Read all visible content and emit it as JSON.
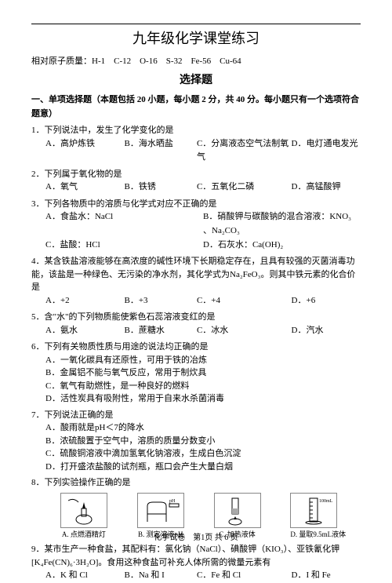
{
  "title": "九年级化学课堂练习",
  "atomic_mass_label": "相对原子质量：",
  "atomic_mass_values": "H-1　C-12　O-16　S-32　Fe-56　Cu-64",
  "section_header": "选择题",
  "instruction": "一、单项选择题（本题包括 20 小题，每小题 2 分，共 40 分。每小题只有一个选项符合题意）",
  "questions": [
    {
      "num": "1．",
      "text": "下列说法中，发生了化学变化的是",
      "opts": [
        {
          "k": "A．",
          "v": "高炉炼铁"
        },
        {
          "k": "B．",
          "v": "海水晒盐"
        },
        {
          "k": "C．",
          "v": "分离液态空气法制氧气"
        },
        {
          "k": "D．",
          "v": "电灯通电发光"
        }
      ],
      "layout": "four"
    },
    {
      "num": "2．",
      "text": "下列属于氧化物的是",
      "opts": [
        {
          "k": "A．",
          "v": "氧气"
        },
        {
          "k": "B．",
          "v": "铁锈"
        },
        {
          "k": "C．",
          "v": "五氧化二磷"
        },
        {
          "k": "D．",
          "v": "高锰酸钾"
        }
      ],
      "layout": "four"
    },
    {
      "num": "3．",
      "text": "下列各物质中的溶质与化学式对应不正确的是",
      "opts": [
        {
          "k": "A．",
          "v": "食盐水：NaCl"
        },
        {
          "k": "B．",
          "v": "硝酸钾与碳酸钠的混合溶液：KNO₃ 、Na₂CO₃"
        },
        {
          "k": "C．",
          "v": "盐酸：HCl"
        },
        {
          "k": "D．",
          "v": "石灰水：Ca(OH)₂"
        }
      ],
      "layout": "two"
    },
    {
      "num": "4．",
      "text": "某含铁盐溶液能够在高浓度的碱性环境下长期稳定存在，且具有较强的灭菌消毒功能，该盐是一种绿色、无污染的净水剂，其化学式为Na₂FeO₃。则其中铁元素的化合价是",
      "opts": [
        {
          "k": "A．",
          "v": "+2"
        },
        {
          "k": "B．",
          "v": "+3"
        },
        {
          "k": "C．",
          "v": "+4"
        },
        {
          "k": "D．",
          "v": "+6"
        }
      ],
      "layout": "four"
    },
    {
      "num": "5．",
      "text": "含\"水\"的下列物质能使紫色石蕊溶液变红的是",
      "opts": [
        {
          "k": "A．",
          "v": "氨水"
        },
        {
          "k": "B．",
          "v": "蔗糖水"
        },
        {
          "k": "C．",
          "v": "冰水"
        },
        {
          "k": "D．",
          "v": "汽水"
        }
      ],
      "layout": "four"
    },
    {
      "num": "6．",
      "text": "下列有关物质性质与用途的说法均正确的是",
      "opts": [
        {
          "k": "A．",
          "v": "一氧化碳具有还原性，可用于铁的冶炼"
        },
        {
          "k": "B．",
          "v": "金属铝不能与氧气反应，常用于制炊具"
        },
        {
          "k": "C．",
          "v": "氧气有助燃性，是一种良好的燃料"
        },
        {
          "k": "D．",
          "v": "活性炭具有吸附性，常用于自来水杀菌消毒"
        }
      ],
      "layout": "one"
    },
    {
      "num": "7．",
      "text": "下列说法正确的是",
      "opts": [
        {
          "k": "A．",
          "v": "酸雨就是pH＜7的降水"
        },
        {
          "k": "B．",
          "v": "浓硫酸置于空气中，溶质的质量分数变小"
        },
        {
          "k": "C．",
          "v": "硫酸铜溶液中滴加氢氧化钠溶液，生成白色沉淀"
        },
        {
          "k": "D．",
          "v": "打开盛浓盐酸的试剂瓶，瓶口会产生大量白烟"
        }
      ],
      "layout": "one"
    },
    {
      "num": "8．",
      "text": "下列实验操作正确的是",
      "images": [
        {
          "label": "A. 点燃酒精灯"
        },
        {
          "label": "B. 测定溶液pH"
        },
        {
          "label": "C. 加热液体"
        },
        {
          "label": "D. 量取9.5mL液体"
        }
      ]
    },
    {
      "num": "9．",
      "text": "某市生产一种食盐，其配料有：氯化钠（NaCl）、碘酸钾（KIO₃）、亚铁氰化钾 [K₄Fe(CN)₆·3H₂O]。食用这种食盐可补充人体所需的微量元素有",
      "opts": [
        {
          "k": "A．",
          "v": "K 和 Cl"
        },
        {
          "k": "B．",
          "v": "Na 和 I"
        },
        {
          "k": "C．",
          "v": "Fe 和 Cl"
        },
        {
          "k": "D．",
          "v": "I 和 Fe"
        }
      ],
      "layout": "four"
    }
  ],
  "footer": "化学试卷　第1页 共 6 页",
  "image_annotations": {
    "ph_label": "pH 试纸",
    "cylinder_label": "100mL"
  }
}
